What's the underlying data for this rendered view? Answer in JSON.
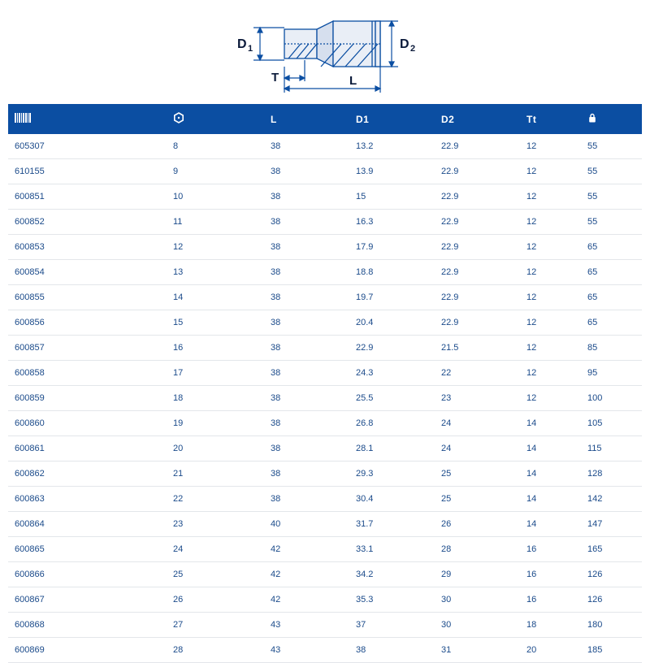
{
  "diagram": {
    "labels": {
      "D1": "D₁",
      "D2": "D₂",
      "L": "L",
      "T": "T"
    },
    "stroke": "#0b4ea2",
    "body_light": "#e9eef6",
    "body_dark": "#c3d0e6",
    "bg": "#ffffff"
  },
  "table": {
    "header_bg": "#0b4ea2",
    "header_color": "#ffffff",
    "row_text_color": "#1a4a8a",
    "row_border": "#e3e6ea",
    "font_size_header": 12,
    "font_size_cell": 11,
    "columns": [
      {
        "key": "code",
        "label_icon": "barcode",
        "width_pct": 26
      },
      {
        "key": "size",
        "label_icon": "hex",
        "width_pct": 16
      },
      {
        "key": "L",
        "label": "L",
        "width_pct": 14
      },
      {
        "key": "D1",
        "label": "D1",
        "width_pct": 14
      },
      {
        "key": "D2",
        "label": "D2",
        "width_pct": 14
      },
      {
        "key": "tt",
        "label": "Tt",
        "width_pct": 10
      },
      {
        "key": "weight",
        "label_icon": "lock",
        "width_pct": 10
      }
    ],
    "rows": [
      [
        "605307",
        "8",
        "38",
        "13.2",
        "22.9",
        "12",
        "55"
      ],
      [
        "610155",
        "9",
        "38",
        "13.9",
        "22.9",
        "12",
        "55"
      ],
      [
        "600851",
        "10",
        "38",
        "15",
        "22.9",
        "12",
        "55"
      ],
      [
        "600852",
        "11",
        "38",
        "16.3",
        "22.9",
        "12",
        "55"
      ],
      [
        "600853",
        "12",
        "38",
        "17.9",
        "22.9",
        "12",
        "65"
      ],
      [
        "600854",
        "13",
        "38",
        "18.8",
        "22.9",
        "12",
        "65"
      ],
      [
        "600855",
        "14",
        "38",
        "19.7",
        "22.9",
        "12",
        "65"
      ],
      [
        "600856",
        "15",
        "38",
        "20.4",
        "22.9",
        "12",
        "65"
      ],
      [
        "600857",
        "16",
        "38",
        "22.9",
        "21.5",
        "12",
        "85"
      ],
      [
        "600858",
        "17",
        "38",
        "24.3",
        "22",
        "12",
        "95"
      ],
      [
        "600859",
        "18",
        "38",
        "25.5",
        "23",
        "12",
        "100"
      ],
      [
        "600860",
        "19",
        "38",
        "26.8",
        "24",
        "14",
        "105"
      ],
      [
        "600861",
        "20",
        "38",
        "28.1",
        "24",
        "14",
        "115"
      ],
      [
        "600862",
        "21",
        "38",
        "29.3",
        "25",
        "14",
        "128"
      ],
      [
        "600863",
        "22",
        "38",
        "30.4",
        "25",
        "14",
        "142"
      ],
      [
        "600864",
        "23",
        "40",
        "31.7",
        "26",
        "14",
        "147"
      ],
      [
        "600865",
        "24",
        "42",
        "33.1",
        "28",
        "16",
        "165"
      ],
      [
        "600866",
        "25",
        "42",
        "34.2",
        "29",
        "16",
        "126"
      ],
      [
        "600867",
        "26",
        "42",
        "35.3",
        "30",
        "16",
        "126"
      ],
      [
        "600868",
        "27",
        "43",
        "37",
        "30",
        "18",
        "180"
      ],
      [
        "600869",
        "28",
        "43",
        "38",
        "31",
        "20",
        "185"
      ]
    ]
  }
}
